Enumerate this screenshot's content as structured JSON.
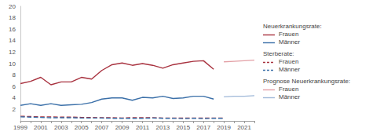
{
  "chart_data": {
    "type": "line",
    "categories": [
      1999,
      null,
      2001,
      null,
      2003,
      null,
      2005,
      null,
      2007,
      null,
      2009,
      null,
      2011,
      null,
      2013,
      null,
      2015,
      null,
      2017,
      null,
      2019,
      null,
      2021,
      null
    ],
    "ylim": [
      0,
      20
    ],
    "yticks": [
      2,
      4,
      6,
      8,
      10,
      12,
      14,
      16,
      18,
      20
    ],
    "grid": false,
    "series": [
      {
        "name": "Frauen",
        "group": "Neuerkrankungsrate:",
        "color": "#a8323f",
        "line_style": "solid",
        "values": [
          6.5,
          6.9,
          7.6,
          6.3,
          6.8,
          6.8,
          7.6,
          7.3,
          8.8,
          9.8,
          10.1,
          9.7,
          10.0,
          9.7,
          9.2,
          9.8,
          10.1,
          10.4,
          10.5,
          9.0,
          null,
          null,
          null,
          null
        ]
      },
      {
        "name": "Männer",
        "group": "Neuerkrankungsrate:",
        "color": "#3a6fa8",
        "line_style": "solid",
        "values": [
          2.7,
          3.0,
          2.7,
          3.0,
          2.7,
          2.8,
          2.9,
          3.2,
          3.8,
          4.0,
          4.0,
          3.6,
          4.1,
          4.0,
          4.3,
          3.9,
          4.0,
          4.3,
          4.3,
          3.8,
          null,
          null,
          null,
          null
        ]
      },
      {
        "name": "Frauen",
        "group": "Sterberate:",
        "color": "#a8323f",
        "line_style": "dashed",
        "values": [
          0.8,
          0.75,
          0.7,
          0.7,
          0.65,
          0.65,
          0.6,
          0.6,
          0.55,
          0.55,
          0.5,
          0.55,
          0.55,
          0.55,
          0.5,
          0.5,
          0.5,
          0.5,
          0.5,
          0.5,
          0.5,
          null,
          null,
          null
        ]
      },
      {
        "name": "Männer",
        "group": "Sterberate:",
        "color": "#3a6fa8",
        "line_style": "dashed",
        "values": [
          0.7,
          0.65,
          0.6,
          0.55,
          0.55,
          0.55,
          0.5,
          0.5,
          0.5,
          0.45,
          0.45,
          0.45,
          0.45,
          0.5,
          0.45,
          0.45,
          0.4,
          0.45,
          0.4,
          0.45,
          0.45,
          null,
          null,
          null
        ]
      },
      {
        "name": "Frauen",
        "group": "Prognose Neuerkrankungsrate:",
        "color": "#e3a0a6",
        "line_style": "solid",
        "values": [
          null,
          null,
          null,
          null,
          null,
          null,
          null,
          null,
          null,
          null,
          null,
          null,
          null,
          null,
          null,
          null,
          null,
          null,
          null,
          null,
          10.3,
          10.4,
          10.5,
          10.6
        ]
      },
      {
        "name": "Männer",
        "group": "Prognose Neuerkrankungsrate:",
        "color": "#9fb8d8",
        "line_style": "solid",
        "values": [
          null,
          null,
          null,
          null,
          null,
          null,
          null,
          null,
          null,
          null,
          null,
          null,
          null,
          null,
          null,
          null,
          null,
          null,
          null,
          null,
          4.2,
          4.3,
          4.3,
          4.4
        ]
      }
    ]
  }
}
